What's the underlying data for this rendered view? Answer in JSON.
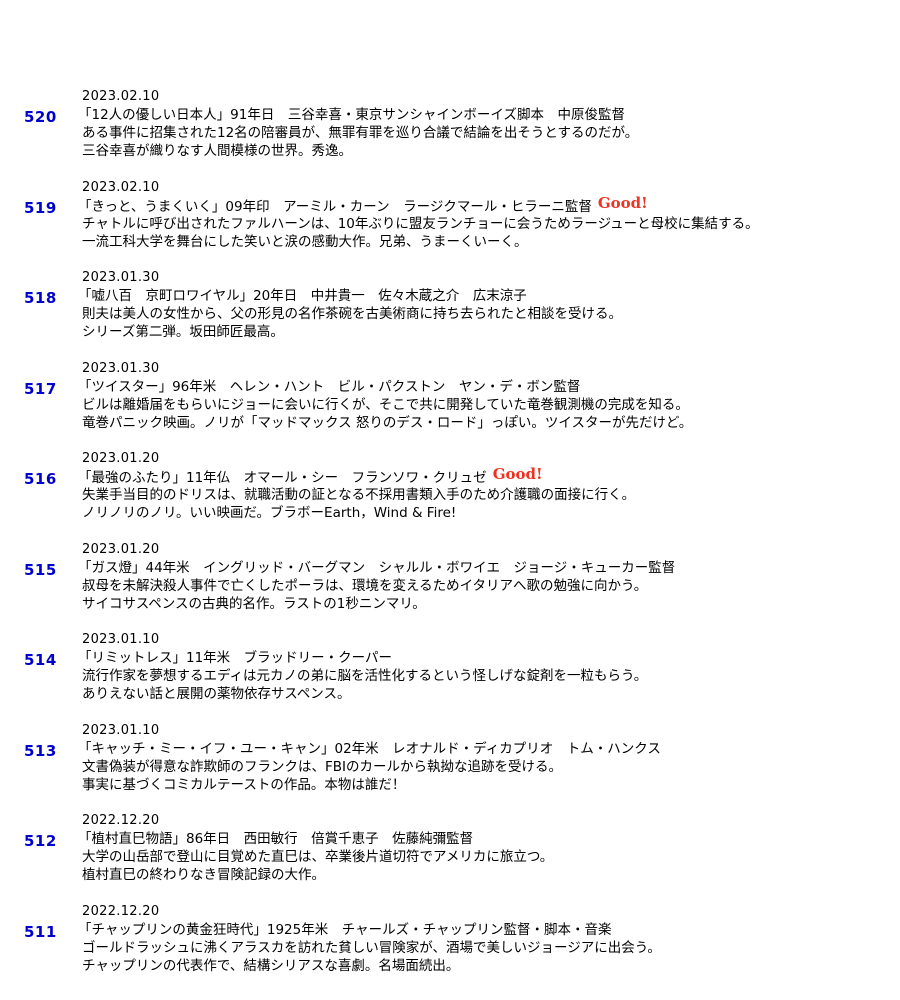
{
  "entries": [
    {
      "num": "520",
      "date": "2023.02.10",
      "title": "「12人の優しい日本人」91年日　三谷幸喜・東京サンシャインボーイズ脚本　中原俊監督",
      "good": "",
      "lines": [
        "ある事件に招集された12名の陪審員が、無罪有罪を巡り合議で結論を出そうとするのだが。",
        "三谷幸喜が織りなす人間模様の世界。秀逸。"
      ]
    },
    {
      "num": "519",
      "date": "2023.02.10",
      "title": "「きっと、うまくいく」09年印　アーミル・カーン　ラージクマール・ヒラーニ監督",
      "good": "Good!",
      "lines": [
        "チャトルに呼び出されたファルハーンは、10年ぶりに盟友ランチョーに会うためラージューと母校に集結する。",
        "一流工科大学を舞台にした笑いと涙の感動大作。兄弟、うまーくいーく。"
      ]
    },
    {
      "num": "518",
      "date": "2023.01.30",
      "title": "「嘘八百　京町ロワイヤル」20年日　中井貴一　佐々木蔵之介　広末涼子",
      "good": "",
      "lines": [
        "則夫は美人の女性から、父の形見の名作茶碗を古美術商に持ち去られたと相談を受ける。",
        "シリーズ第二弾。坂田師匠最高。"
      ]
    },
    {
      "num": "517",
      "date": "2023.01.30",
      "title": "「ツイスター」96年米　ヘレン・ハント　ビル・パクストン　ヤン・デ・ボン監督",
      "good": "",
      "lines": [
        "ビルは離婚届をもらいにジョーに会いに行くが、そこで共に開発していた竜巻観測機の完成を知る。",
        "竜巻パニック映画。ノリが「マッドマックス 怒りのデス・ロード」っぽい。ツイスターが先だけど。"
      ]
    },
    {
      "num": "516",
      "date": "2023.01.20",
      "title": "「最強のふたり」11年仏　オマール・シー　フランソワ・クリュゼ",
      "good": "Good!",
      "lines": [
        "失業手当目的のドリスは、就職活動の証となる不採用書類入手のため介護職の面接に行く。",
        "ノリノリのノリ。いい映画だ。ブラボーEarth，Wind & Fire!"
      ]
    },
    {
      "num": "515",
      "date": "2023.01.20",
      "title": "「ガス燈」44年米　イングリッド・バーグマン　シャルル・ボワイエ　ジョージ・キューカー監督",
      "good": "",
      "lines": [
        "叔母を未解決殺人事件で亡くしたポーラは、環境を変えるためイタリアへ歌の勉強に向かう。",
        "サイコサスペンスの古典的名作。ラストの1秒ニンマリ。"
      ]
    },
    {
      "num": "514",
      "date": "2023.01.10",
      "title": "「リミットレス」11年米　ブラッドリー・クーパー",
      "good": "",
      "lines": [
        "流行作家を夢想するエディは元カノの弟に脳を活性化するという怪しげな錠剤を一粒もらう。",
        "ありえない話と展開の薬物依存サスペンス。"
      ]
    },
    {
      "num": "513",
      "date": "2023.01.10",
      "title": "「キャッチ・ミー・イフ・ユー・キャン」02年米　レオナルド・ディカプリオ　トム・ハンクス",
      "good": "",
      "lines": [
        "文書偽装が得意な詐欺師のフランクは、FBIのカールから執拗な追跡を受ける。",
        "事実に基づくコミカルテーストの作品。本物は誰だ！"
      ]
    },
    {
      "num": "512",
      "date": "2022.12.20",
      "title": "「植村直巳物語」86年日　西田敏行　倍賞千恵子　佐藤純彌監督",
      "good": "",
      "lines": [
        "大学の山岳部で登山に目覚めた直巳は、卒業後片道切符でアメリカに旅立つ。",
        "植村直巳の終わりなき冒険記録の大作。"
      ]
    },
    {
      "num": "511",
      "date": "2022.12.20",
      "title": "「チャップリンの黄金狂時代」1925年米　チャールズ・チャップリン監督・脚本・音楽",
      "good": "",
      "lines": [
        "ゴールドラッシュに沸くアラスカを訪れた貧しい冒険家が、酒場で美しいジョージアに出会う。",
        "チャップリンの代表作で、結構シリアスな喜劇。名場面続出。"
      ]
    }
  ]
}
